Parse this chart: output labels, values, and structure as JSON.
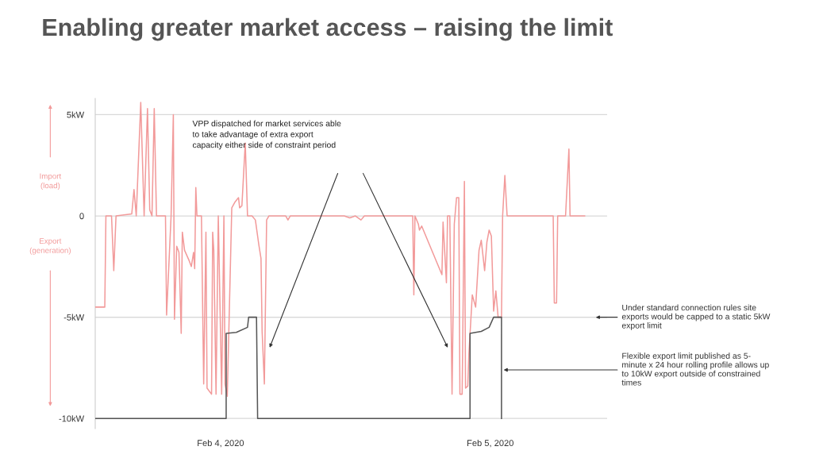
{
  "chart_data": {
    "type": "line",
    "title": "Enabling greater market access – raising the limit",
    "annotations": [
      "VPP dispatched for market services able\nto take advantage of extra export\ncapacity either side of constraint period",
      "Import\n(load)",
      "Export\n(generation)",
      {
        "text": "Flexible export limit published as 5-\nminute x 24 hour rolling profile allows up\nto 10kW export outside of constrained\ntimes",
        "x": "2020-02-05T01:00",
        "y": -7.6
      }
    ],
    "ref_lines": [
      {
        "axis": "y",
        "value": -5,
        "label": "Under standard connection rules site\nexports would be capped to a static 5kW\nexport limit",
        "color": "#d9d9d9"
      }
    ],
    "series": [
      {
        "color": "#f29a9a",
        "x": [
          "2020-02-03T12:54",
          "2020-02-03T13:42",
          "2020-02-03T13:48",
          "2020-02-03T14:18",
          "2020-02-03T14:30",
          "2020-02-03T14:42",
          "2020-02-03T16:06",
          "2020-02-03T16:18",
          "2020-02-03T16:30",
          "2020-02-03T16:54",
          "2020-02-03T17:12",
          "2020-02-03T17:30",
          "2020-02-03T17:42",
          "2020-02-03T17:54",
          "2020-02-03T18:06",
          "2020-02-03T18:18",
          "2020-02-03T19:06",
          "2020-02-03T19:12",
          "2020-02-03T19:36",
          "2020-02-03T19:48",
          "2020-02-03T19:54",
          "2020-02-03T20:06",
          "2020-02-03T20:18",
          "2020-02-03T20:30",
          "2020-02-03T20:36",
          "2020-02-03T20:48",
          "2020-02-03T21:12",
          "2020-02-03T21:24",
          "2020-02-03T21:36",
          "2020-02-03T21:42",
          "2020-02-03T21:48",
          "2020-02-03T21:54",
          "2020-02-03T22:18",
          "2020-02-03T22:30",
          "2020-02-03T22:42",
          "2020-02-03T22:48",
          "2020-02-03T23:12",
          "2020-02-03T23:18",
          "2020-02-03T23:24",
          "2020-02-03T23:36",
          "2020-02-03T23:48",
          "2020-02-04T00:06",
          "2020-02-04T00:18",
          "2020-02-04T00:24",
          "2020-02-04T00:36",
          "2020-02-04T01:00",
          "2020-02-04T01:18",
          "2020-02-04T01:36",
          "2020-02-04T01:42",
          "2020-02-04T01:54",
          "2020-02-04T02:12",
          "2020-02-04T02:24",
          "2020-02-04T02:48",
          "2020-02-04T03:06",
          "2020-02-04T03:24",
          "2020-02-04T03:36",
          "2020-02-04T03:42",
          "2020-02-04T03:54",
          "2020-02-04T04:06",
          "2020-02-04T04:18",
          "2020-02-04T05:48",
          "2020-02-04T06:00",
          "2020-02-04T06:12",
          "2020-02-04T11:00",
          "2020-02-04T11:30",
          "2020-02-04T12:00",
          "2020-02-04T12:30",
          "2020-02-04T12:48",
          "2020-02-04T17:06",
          "2020-02-04T17:12",
          "2020-02-04T17:18",
          "2020-02-04T17:36",
          "2020-02-04T17:42",
          "2020-02-04T17:54",
          "2020-02-04T18:30",
          "2020-02-04T19:42",
          "2020-02-04T19:48",
          "2020-02-04T20:06",
          "2020-02-04T20:12",
          "2020-02-04T20:24",
          "2020-02-04T20:36",
          "2020-02-04T20:48",
          "2020-02-04T21:00",
          "2020-02-04T21:12",
          "2020-02-04T21:18",
          "2020-02-04T21:30",
          "2020-02-04T21:42",
          "2020-02-04T21:48",
          "2020-02-04T22:00",
          "2020-02-04T22:06",
          "2020-02-04T22:24",
          "2020-02-04T22:42",
          "2020-02-04T23:00",
          "2020-02-04T23:12",
          "2020-02-04T23:30",
          "2020-02-04T23:42",
          "2020-02-04T23:54",
          "2020-02-05T00:06",
          "2020-02-05T00:18",
          "2020-02-05T00:30",
          "2020-02-05T00:42",
          "2020-02-05T01:00",
          "2020-02-05T01:06",
          "2020-02-05T01:18",
          "2020-02-05T01:30",
          "2020-02-05T05:36",
          "2020-02-05T05:42",
          "2020-02-05T05:54",
          "2020-02-05T06:00",
          "2020-02-05T06:42",
          "2020-02-05T07:00",
          "2020-02-05T07:06",
          "2020-02-05T08:24"
        ],
        "values": [
          -4.5,
          -4.5,
          0,
          0,
          -2.7,
          0,
          0.1,
          1.3,
          0,
          5.6,
          0,
          5.3,
          0.3,
          0,
          5.3,
          0,
          0,
          -4.9,
          0,
          5.0,
          -5.1,
          -1.5,
          -1.8,
          -5.8,
          -0.8,
          -1.7,
          -2.2,
          -2.5,
          -1.8,
          -2.6,
          1.4,
          0,
          0,
          -8.3,
          -0.8,
          -8.5,
          -8.8,
          -0.8,
          -1.7,
          -8.8,
          0,
          -8.8,
          0,
          -8.3,
          -8.9,
          0.4,
          0.7,
          0.9,
          0.4,
          0.5,
          3.6,
          0,
          0,
          -0.2,
          -1.4,
          -2.1,
          -5.7,
          -8.3,
          -0.2,
          0,
          0,
          -0.2,
          0,
          0,
          -0.1,
          0,
          -0.2,
          0,
          0,
          -3.9,
          0,
          -0.4,
          -0.7,
          -0.5,
          -1.3,
          -2.9,
          -0.3,
          -3.3,
          0,
          0,
          -8.8,
          -0.4,
          0.9,
          0.9,
          -8.8,
          -8.8,
          1.7,
          -8.5,
          -8.4,
          -6.8,
          -3.9,
          -4.5,
          -1.7,
          -1.2,
          -2.7,
          -1.3,
          -0.7,
          -1.0,
          -4.7,
          -3.7,
          -5.0,
          -5.0,
          0,
          2.0,
          0,
          0,
          -4.3,
          -4.3,
          0,
          0,
          3.3,
          0,
          0
        ]
      },
      {
        "color": "#555555",
        "x": [
          "2020-02-03T12:54",
          "2020-02-04T00:30",
          "2020-02-04T00:30",
          "2020-02-04T01:24",
          "2020-02-04T02:24",
          "2020-02-04T02:30",
          "2020-02-04T03:12",
          "2020-02-04T03:18",
          "2020-02-04T22:12",
          "2020-02-04T22:12",
          "2020-02-04T23:12",
          "2020-02-04T23:54",
          "2020-02-05T00:18",
          "2020-02-05T01:00",
          "2020-02-05T01:00"
        ],
        "values": [
          -10,
          -10,
          -5.8,
          -5.75,
          -5.5,
          -5,
          -5,
          -10,
          -10,
          -5.8,
          -5.7,
          -5.5,
          -5,
          -5,
          -10
        ]
      }
    ],
    "xlim": [
      "2020-02-03T12:51",
      "2020-02-05T10:24"
    ],
    "xticks": [
      {
        "value": "2020-02-04",
        "label": "Feb 4, 2020"
      },
      {
        "value": "2020-02-05",
        "label": "Feb 5, 2020"
      }
    ],
    "ylim": [
      -10.5,
      5.8
    ],
    "yticks": [
      {
        "value": 5,
        "label": "5kW"
      },
      0,
      {
        "value": -5,
        "label": "-5kW"
      },
      {
        "value": -10,
        "label": "-10kW"
      }
    ],
    "grid": "y",
    "legend": false,
    "marker": "none",
    "line_style": "solid"
  }
}
